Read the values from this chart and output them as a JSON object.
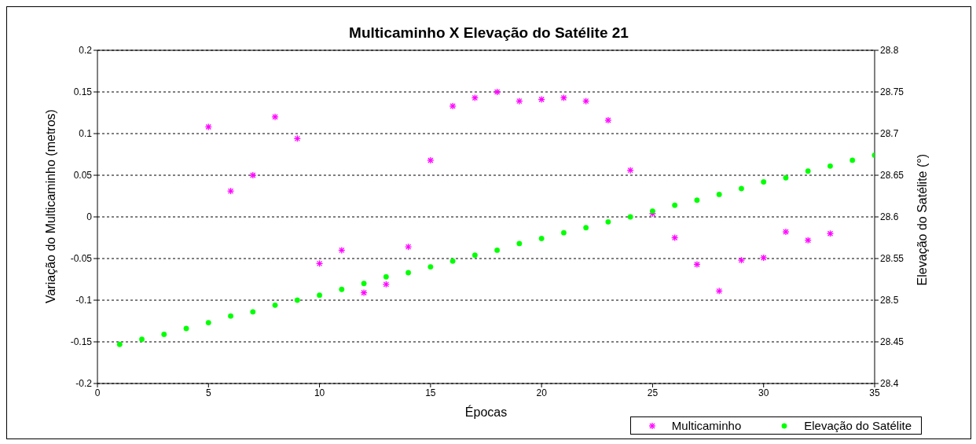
{
  "chart_data": {
    "type": "scatter",
    "title": "Multicaminho X Elevação do Satélite 21",
    "xlabel": "Épocas",
    "ylabel": "Variação do Multicaminho (metros)",
    "y2label": "Elevação do Satélite (°)",
    "xlim": [
      0,
      35
    ],
    "xticks": [
      0,
      5,
      10,
      15,
      20,
      25,
      30,
      35
    ],
    "ylim": [
      -0.2,
      0.2
    ],
    "yticks": [
      -0.2,
      -0.15,
      -0.1,
      -0.05,
      0,
      0.05,
      0.1,
      0.15,
      0.2
    ],
    "y2lim": [
      28.4,
      28.8
    ],
    "y2ticks": [
      28.4,
      28.45,
      28.5,
      28.55,
      28.6,
      28.65,
      28.7,
      28.75,
      28.8
    ],
    "grid": "y",
    "legend": "bottom right",
    "series": [
      {
        "name": "Multicaminho",
        "color": "#ff00ff",
        "marker": "cross",
        "x": [
          5,
          6,
          7,
          8,
          9,
          10,
          11,
          12,
          13,
          14,
          15,
          16,
          17,
          18,
          19,
          20,
          21,
          22,
          23,
          24,
          25,
          26,
          27,
          28,
          29,
          30,
          31,
          32,
          33
        ],
        "values": [
          0.108,
          0.031,
          0.05,
          0.12,
          0.094,
          -0.056,
          -0.04,
          -0.091,
          -0.081,
          -0.036,
          0.068,
          0.133,
          0.143,
          0.15,
          0.139,
          0.141,
          0.143,
          0.139,
          0.116,
          0.056,
          0.004,
          -0.025,
          -0.057,
          -0.089,
          -0.052,
          -0.049,
          -0.018,
          -0.028,
          -0.02
        ]
      },
      {
        "name": "Elevação do Satélite",
        "color": "#00ff00",
        "marker": "circle",
        "axis": "y2",
        "x": [
          1,
          2,
          3,
          4,
          5,
          6,
          7,
          8,
          9,
          10,
          11,
          12,
          13,
          14,
          15,
          16,
          17,
          18,
          19,
          20,
          21,
          22,
          23,
          24,
          25,
          26,
          27,
          28,
          29,
          30,
          31,
          32,
          33,
          34,
          35
        ],
        "values": [
          28.447,
          28.453,
          28.459,
          28.466,
          28.473,
          28.481,
          28.486,
          28.494,
          28.5,
          28.506,
          28.513,
          28.52,
          28.528,
          28.533,
          28.54,
          28.547,
          28.554,
          28.56,
          28.568,
          28.574,
          28.581,
          28.587,
          28.594,
          28.6,
          28.607,
          28.614,
          28.62,
          28.627,
          28.634,
          28.642,
          28.647,
          28.655,
          28.661,
          28.668,
          28.674
        ]
      }
    ]
  }
}
